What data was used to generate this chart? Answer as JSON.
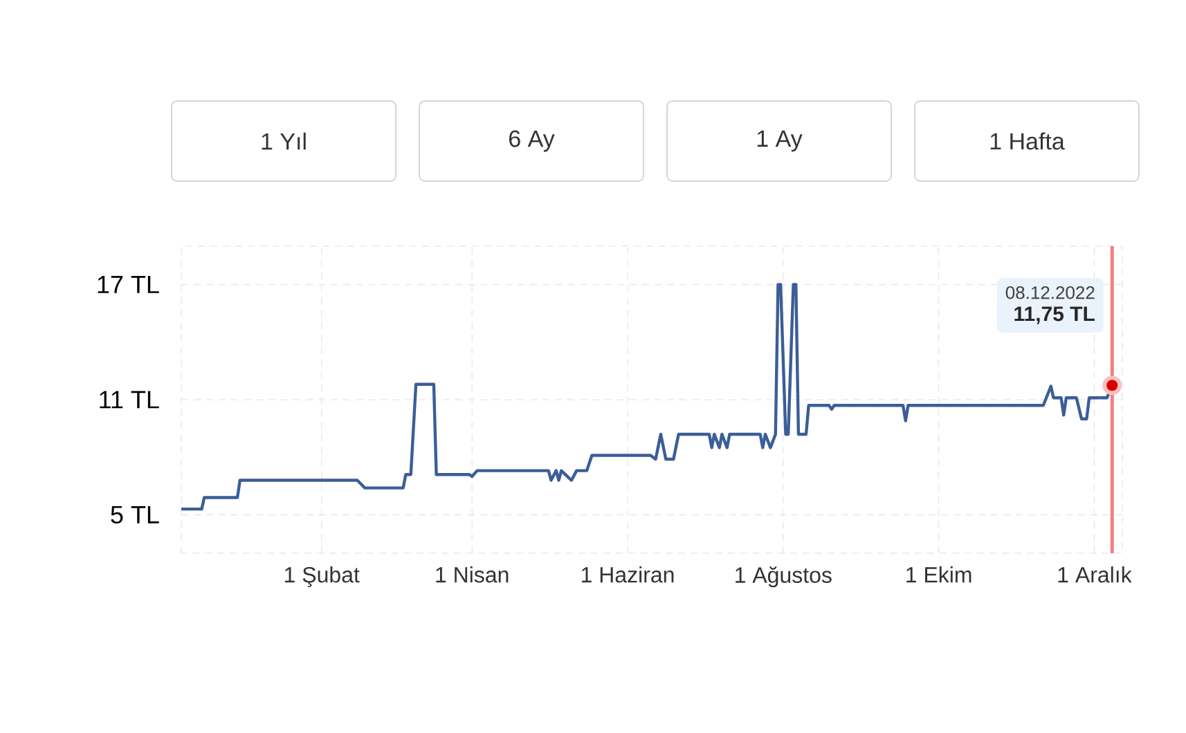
{
  "chart_data": {
    "type": "line",
    "color": "#3b5e98",
    "grid": true,
    "annotations": [
      "1 Yıl",
      "6 Ay",
      "1 Ay",
      "1 Hafta",
      "08.12.2022",
      "11,75 TL"
    ],
    "ref_lines": [
      {
        "axis": "x",
        "value": "2022-12-08",
        "color": "#f08080"
      }
    ],
    "xlim": [
      "2021-12-08",
      "2022-12-12"
    ],
    "xticks": [
      {
        "value": "2022-02-01",
        "label": "1 Şubat"
      },
      {
        "value": "2022-04-01",
        "label": "1 Nisan"
      },
      {
        "value": "2022-06-01",
        "label": "1 Haziran"
      },
      {
        "value": "2022-08-01",
        "label": "1 Ağustos"
      },
      {
        "value": "2022-10-01",
        "label": "1 Ekim"
      },
      {
        "value": "2022-12-01",
        "label": "1 Aralık"
      }
    ],
    "ylim": [
      3,
      19
    ],
    "yticks": [
      {
        "value": 5,
        "label": "5 TL"
      },
      {
        "value": 11,
        "label": "11 TL"
      },
      {
        "value": 17,
        "label": "17 TL"
      }
    ],
    "x": [
      "2021-12-08",
      "2021-12-16",
      "2021-12-17",
      "2021-12-30",
      "2021-12-31",
      "2022-02-15",
      "2022-02-18",
      "2022-03-05",
      "2022-03-06",
      "2022-03-08",
      "2022-03-10",
      "2022-03-17",
      "2022-03-18",
      "2022-03-31",
      "2022-04-01",
      "2022-04-03",
      "2022-05-01",
      "2022-05-02",
      "2022-05-04",
      "2022-05-05",
      "2022-05-06",
      "2022-05-10",
      "2022-05-12",
      "2022-05-16",
      "2022-05-18",
      "2022-06-10",
      "2022-06-12",
      "2022-06-14",
      "2022-06-16",
      "2022-06-19",
      "2022-06-21",
      "2022-07-03",
      "2022-07-04",
      "2022-07-05",
      "2022-07-07",
      "2022-07-08",
      "2022-07-10",
      "2022-07-11",
      "2022-07-23",
      "2022-07-24",
      "2022-07-25",
      "2022-07-27",
      "2022-07-29",
      "2022-07-30",
      "2022-07-31",
      "2022-08-02",
      "2022-08-03",
      "2022-08-05",
      "2022-08-06",
      "2022-08-07",
      "2022-08-10",
      "2022-08-11",
      "2022-08-19",
      "2022-08-20",
      "2022-08-21",
      "2022-09-17",
      "2022-09-18",
      "2022-09-19",
      "2022-11-11",
      "2022-11-14",
      "2022-11-15",
      "2022-11-18",
      "2022-11-19",
      "2022-11-20",
      "2022-11-24",
      "2022-11-26",
      "2022-11-28",
      "2022-11-29",
      "2022-12-06",
      "2022-12-08"
    ],
    "values": [
      5.3,
      5.3,
      5.9,
      5.9,
      6.8,
      6.8,
      6.4,
      6.4,
      7.1,
      7.1,
      11.8,
      11.8,
      7.1,
      7.1,
      7.0,
      7.3,
      7.3,
      6.8,
      7.3,
      6.8,
      7.3,
      6.8,
      7.3,
      7.3,
      8.1,
      8.1,
      7.9,
      9.2,
      7.9,
      7.9,
      9.2,
      9.2,
      8.5,
      9.2,
      8.5,
      9.2,
      8.5,
      9.2,
      9.2,
      8.5,
      9.2,
      8.5,
      9.2,
      17,
      17,
      9.2,
      9.2,
      17,
      17,
      9.2,
      9.2,
      10.7,
      10.7,
      10.5,
      10.7,
      10.7,
      9.9,
      10.7,
      10.7,
      11.7,
      11.1,
      11.1,
      10.2,
      11.1,
      11.1,
      10.0,
      10.0,
      11.1,
      11.1,
      11.75
    ]
  }
}
